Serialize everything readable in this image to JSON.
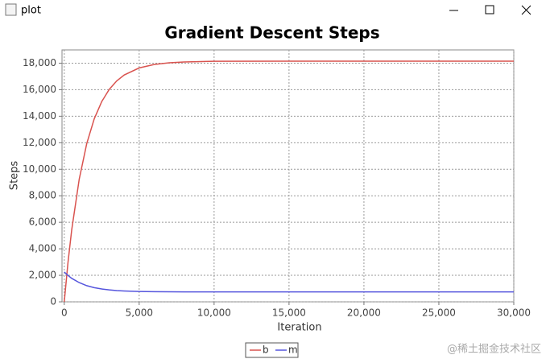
{
  "window": {
    "title": "plot"
  },
  "watermark": "@稀土掘金技术社区",
  "chart_data": {
    "type": "line",
    "title": "Gradient Descent Steps",
    "x_label": "Iteration",
    "y_label": "Steps",
    "x": [
      0,
      250,
      500,
      1000,
      1500,
      2000,
      2500,
      3000,
      3500,
      4000,
      5000,
      6000,
      7000,
      8000,
      10000,
      15000,
      20000,
      25000,
      30000
    ],
    "series": [
      {
        "name": "b",
        "color": "#d9534f",
        "values": [
          0,
          2980,
          5450,
          9260,
          11930,
          13800,
          15100,
          16020,
          16660,
          17110,
          17640,
          17900,
          18030,
          18090,
          18140,
          18150,
          18150,
          18150,
          18150
        ]
      },
      {
        "name": "m",
        "color": "#5555dd",
        "values": [
          2250,
          1990,
          1770,
          1450,
          1220,
          1070,
          970,
          900,
          850,
          820,
          780,
          765,
          755,
          753,
          750,
          750,
          750,
          750,
          750
        ]
      }
    ],
    "xlim": [
      -150,
      30000
    ],
    "ylim": [
      0,
      19000
    ],
    "xticks": [
      0,
      {
        "value": 5000,
        "label": "5,000"
      },
      {
        "value": 10000,
        "label": "10,000"
      },
      {
        "value": 15000,
        "label": "15,000"
      },
      {
        "value": 20000,
        "label": "20,000"
      },
      {
        "value": 25000,
        "label": "25,000"
      },
      {
        "value": 30000,
        "label": "30,000"
      }
    ],
    "yticks": [
      0,
      {
        "value": 2000,
        "label": "2,000"
      },
      {
        "value": 4000,
        "label": "4,000"
      },
      {
        "value": 6000,
        "label": "6,000"
      },
      {
        "value": 8000,
        "label": "8,000"
      },
      {
        "value": 10000,
        "label": "10,000"
      },
      {
        "value": 12000,
        "label": "12,000"
      },
      {
        "value": 14000,
        "label": "14,000"
      },
      {
        "value": 16000,
        "label": "16,000"
      },
      {
        "value": 18000,
        "label": "18,000"
      }
    ],
    "grid": true,
    "legend": "bottom"
  }
}
